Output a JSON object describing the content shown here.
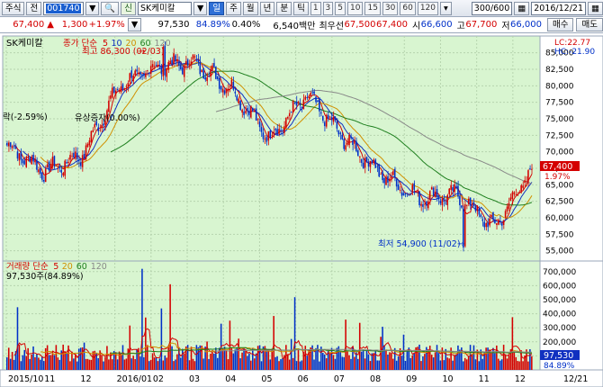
{
  "toolbar": {
    "menu_label": "주식",
    "menu_label2": "전",
    "code": "001740",
    "search_icon": "search-icon",
    "name_prefix": "신",
    "stock_name": "SK케미칼",
    "periods": [
      "일",
      "주",
      "월",
      "년",
      "분",
      "틱"
    ],
    "selected_period": "일",
    "intervals": [
      "1",
      "3",
      "5",
      "10",
      "15",
      "30",
      "60",
      "120"
    ],
    "count": "300/600",
    "date": "2016/12/21"
  },
  "quote": {
    "price": "67,400",
    "change": "1,300",
    "change_pct": "+1.97%",
    "volume": "97,530",
    "vol_ratio": "84.89%",
    "turnover": "0.40%",
    "amount": "6,540백만",
    "best_ask_label": "최우선",
    "ask": "67,500",
    "bid": "67,400",
    "open_label": "시",
    "open": "66,600",
    "high_label": "고",
    "high": "67,700",
    "low_label": "저",
    "low": "66,000",
    "buy_label": "매수",
    "sell_label": "매도"
  },
  "price_panel": {
    "ticker_label": "SK케미칼",
    "legend": [
      {
        "text": "종가 단순",
        "color": "#d40000"
      },
      {
        "text": "5",
        "color": "#d40000"
      },
      {
        "text": "10",
        "color": "#1030c0"
      },
      {
        "text": "20",
        "color": "#d09000"
      },
      {
        "text": "60",
        "color": "#208020"
      },
      {
        "text": "120",
        "color": "#888888"
      }
    ],
    "lc_label": "LC:22.77",
    "hc_label": "HC:-21.90",
    "high_annotation": "최고 86,300 (02/03)",
    "low_annotation": "최저 54,900 (11/02)",
    "event1": "락(-2.59%)",
    "event2": "유상증자(0.00%)",
    "last_price_label": "67,400",
    "last_pct_label": "1.97%",
    "y_ticks": [
      "85,000",
      "82,500",
      "80,000",
      "77,500",
      "75,000",
      "72,500",
      "70,000",
      "67,500",
      "65,000",
      "62,500",
      "60,000",
      "57,500",
      "55,000"
    ]
  },
  "volume_panel": {
    "legend": [
      {
        "text": "거래량 단순",
        "color": "#d40000"
      },
      {
        "text": "5",
        "color": "#d40000"
      },
      {
        "text": "20",
        "color": "#d09000"
      },
      {
        "text": "60",
        "color": "#208020"
      },
      {
        "text": "120",
        "color": "#888888"
      }
    ],
    "current_label": "97,530주(84.89%)",
    "y_ticks": [
      "700,000",
      "600,000",
      "500,000",
      "400,000",
      "300,000",
      "200,000",
      "100,000"
    ],
    "last_vol_label": "97,530",
    "last_vol_pct": "84.89%"
  },
  "x_axis": {
    "labels": [
      "2015/10",
      "11",
      "12",
      "2016/01",
      "02",
      "03",
      "04",
      "05",
      "06",
      "07",
      "08",
      "09",
      "10",
      "11",
      "12"
    ],
    "end_label": "12/21"
  },
  "chart_data": {
    "type": "candlestick",
    "price_range": [
      54000,
      87000
    ],
    "volume_range": [
      0,
      750000
    ],
    "period_high": 86300,
    "period_high_date": "02/03",
    "period_low": 54900,
    "period_low_date": "11/02",
    "last_close": 67400,
    "monthly_close_path": [
      {
        "month": "2015/10",
        "close": 71000
      },
      {
        "month": "11",
        "close": 67000
      },
      {
        "month": "12",
        "close": 69500
      },
      {
        "month": "2016/01",
        "close": 80000
      },
      {
        "month": "02",
        "close": 83000
      },
      {
        "month": "03",
        "close": 83500
      },
      {
        "month": "04",
        "close": 79500
      },
      {
        "month": "05",
        "close": 72000
      },
      {
        "month": "06",
        "close": 78500
      },
      {
        "month": "07",
        "close": 72000
      },
      {
        "month": "08",
        "close": 66500
      },
      {
        "month": "09",
        "close": 63000
      },
      {
        "month": "10",
        "close": 63500
      },
      {
        "month": "11",
        "close": 58500
      },
      {
        "month": "12",
        "close": 67400
      }
    ]
  },
  "colors": {
    "plot_bg": "#d8f5d0",
    "up": "#d40000",
    "down": "#0030c8",
    "ma5": "#d40000",
    "ma10": "#1030c0",
    "ma20": "#d09000",
    "ma60": "#208020",
    "ma120": "#888888"
  }
}
